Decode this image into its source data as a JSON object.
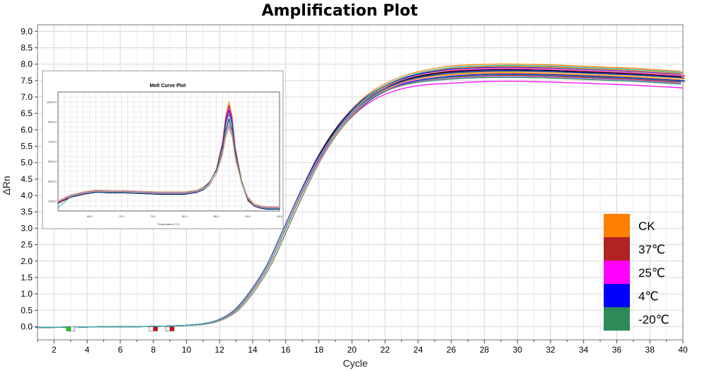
{
  "chart_data": [
    {
      "type": "line",
      "title": "Amplification Plot",
      "xlabel": "Cycle",
      "ylabel": "ΔRn",
      "xlim": [
        1,
        40
      ],
      "ylim": [
        -0.4,
        9.2
      ],
      "x_ticks": [
        "2",
        "4",
        "6",
        "8",
        "10",
        "12",
        "14",
        "16",
        "18",
        "20",
        "22",
        "24",
        "26",
        "28",
        "30",
        "32",
        "34",
        "36",
        "38",
        "40"
      ],
      "y_ticks": [
        "9.0",
        "8.5",
        "8.0",
        "7.5",
        "7.0",
        "6.5",
        "6.0",
        "5.5",
        "5.0",
        "4.5",
        "4.0",
        "3.5",
        "3.0",
        "2.5",
        "2.0",
        "1.5",
        "1.0",
        "0.5",
        "0.0"
      ],
      "grid": true,
      "legend_position": "bottom-right",
      "x": [
        1,
        2,
        3,
        4,
        5,
        6,
        7,
        8,
        9,
        10,
        11,
        12,
        13,
        14,
        15,
        16,
        17,
        18,
        19,
        20,
        21,
        22,
        23,
        24,
        25,
        26,
        27,
        28,
        29,
        30,
        31,
        32,
        33,
        34,
        35,
        36,
        37,
        38,
        39,
        40
      ],
      "base_curve": [
        -0.02,
        -0.02,
        -0.01,
        -0.01,
        0,
        0,
        0,
        0.01,
        0.02,
        0.04,
        0.08,
        0.2,
        0.5,
        1.1,
        1.9,
        3.0,
        4.1,
        5.1,
        5.9,
        6.5,
        6.95,
        7.25,
        7.45,
        7.58,
        7.66,
        7.72,
        7.75,
        7.77,
        7.78,
        7.78,
        7.77,
        7.76,
        7.74,
        7.72,
        7.7,
        7.68,
        7.66,
        7.63,
        7.6,
        7.57
      ],
      "series": [
        {
          "name": "CK",
          "color": "#ff8000",
          "plateau_offsets": [
            0.22,
            0.15,
            0.05,
            -0.05
          ]
        },
        {
          "name": "37℃",
          "color": "#b22222",
          "plateau_offsets": [
            0.1,
            0.0,
            -0.12
          ]
        },
        {
          "name": "25℃",
          "color": "#ff00ff",
          "plateau_offsets": [
            0.08,
            -0.1,
            -0.3
          ]
        },
        {
          "name": "4℃",
          "color": "#0000ff",
          "plateau_offsets": [
            0.12,
            0.02,
            -0.08
          ]
        },
        {
          "name": "-20℃",
          "color": "#2e8b57",
          "plateau_offsets": [
            0.0,
            -0.1,
            -0.18
          ]
        }
      ],
      "extra_series_colors": [
        "#000000",
        "#e9967a",
        "#f4a460",
        "#9370db",
        "#20b2aa"
      ],
      "threshold_markers": [
        {
          "x": 3.0,
          "colors": [
            "#00e000",
            "#ffffff"
          ]
        },
        {
          "x": 8.0,
          "colors": [
            "#ffffff",
            "#e00000"
          ]
        },
        {
          "x": 9.0,
          "colors": [
            "#ffffff",
            "#e00000"
          ]
        }
      ]
    },
    {
      "type": "line",
      "title": "Melt Curve Plot",
      "xlabel": "Temperature (°C)",
      "x_ticks": [
        "65.0",
        "70.0",
        "75.0",
        "80.0",
        "85.0",
        "90.0",
        "95.0"
      ],
      "y_ticks": [
        "11000.0",
        "9000.0",
        "7000.0",
        "5000.0",
        "3000.0",
        "1000.0"
      ],
      "x": [
        60,
        62,
        64,
        66,
        68,
        70,
        72,
        74,
        76,
        78,
        80,
        82,
        83,
        84,
        85,
        86,
        86.5,
        87,
        87.5,
        88,
        89,
        90,
        91,
        92,
        93,
        95
      ],
      "base_curve": [
        900,
        1500,
        1800,
        2000,
        1950,
        1950,
        1900,
        1850,
        1800,
        1800,
        1800,
        2000,
        2300,
        2900,
        4000,
        6500,
        8800,
        10000,
        8800,
        6000,
        3000,
        1200,
        600,
        400,
        300,
        300
      ],
      "peak_heights": [
        11400,
        10900,
        10500,
        10100,
        9600,
        9300,
        9000,
        8600,
        8200,
        7900
      ]
    }
  ],
  "legend": [
    {
      "label": "CK",
      "color": "#ff8000"
    },
    {
      "label": "37℃",
      "color": "#b22222"
    },
    {
      "label": "25℃",
      "color": "#ff00ff"
    },
    {
      "label": "4℃",
      "color": "#0000ff"
    },
    {
      "label": "-20℃",
      "color": "#2e8b57"
    }
  ]
}
